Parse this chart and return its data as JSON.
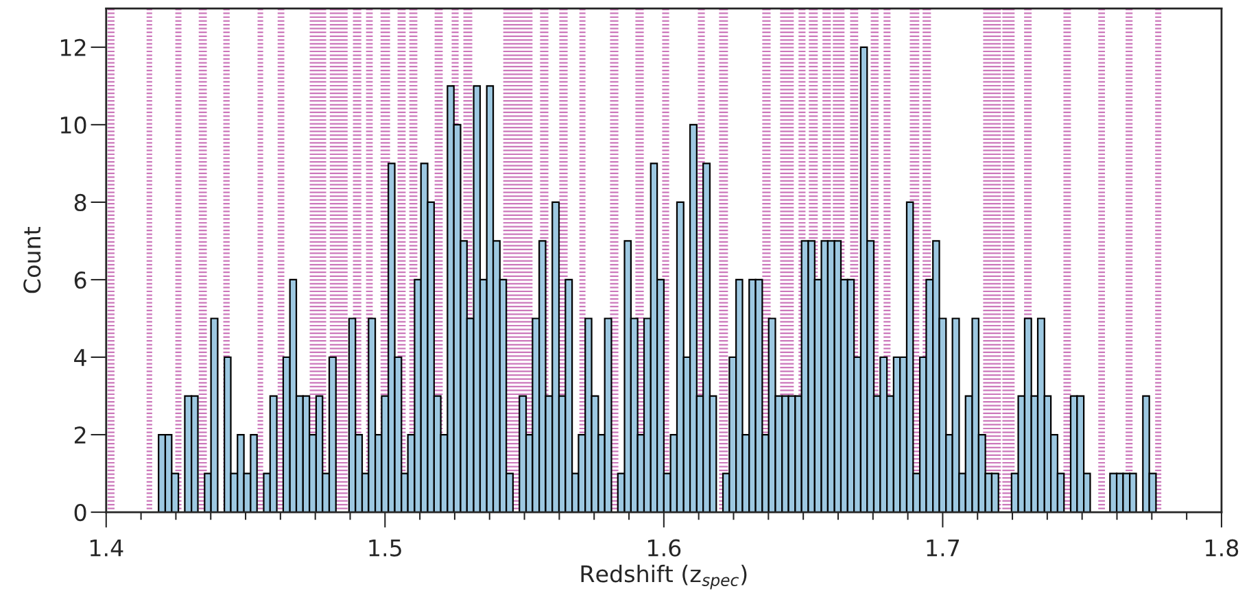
{
  "chart_data": {
    "type": "histogram",
    "xlabel": "Redshift (z$_{spec}$)",
    "ylabel": "Count",
    "color": "#9dc8e1",
    "bins": [
      1.4188,
      1.4212,
      1.4235,
      1.4259,
      1.4282,
      1.4306,
      1.4329,
      1.4353,
      1.4376,
      1.44,
      1.4424,
      1.4447,
      1.4471,
      1.4494,
      1.4518,
      1.4541,
      1.4565,
      1.4588,
      1.4612,
      1.4635,
      1.4659,
      1.4682,
      1.4706,
      1.4729,
      1.4753,
      1.4776,
      1.48,
      1.4824,
      1.4847,
      1.4871,
      1.4894,
      1.4918,
      1.4941,
      1.4965,
      1.4988,
      1.5012,
      1.5035,
      1.5059,
      1.5082,
      1.5106,
      1.5129,
      1.5153,
      1.5176,
      1.52,
      1.5224,
      1.5247,
      1.5271,
      1.5294,
      1.5318,
      1.5341,
      1.5365,
      1.5388,
      1.5412,
      1.5435,
      1.5459,
      1.5482,
      1.5506,
      1.5529,
      1.5553,
      1.5576,
      1.56,
      1.5624,
      1.5647,
      1.5671,
      1.5694,
      1.5718,
      1.5741,
      1.5765,
      1.5788,
      1.5812,
      1.5835,
      1.5859,
      1.5882,
      1.5906,
      1.5929,
      1.5953,
      1.5976,
      1.6,
      1.6024,
      1.6047,
      1.6071,
      1.6094,
      1.6118,
      1.6141,
      1.6165,
      1.6188,
      1.6212,
      1.6235,
      1.6259,
      1.6282,
      1.6306,
      1.6329,
      1.6353,
      1.6376,
      1.64,
      1.6424,
      1.6447,
      1.6471,
      1.6494,
      1.6518,
      1.6541,
      1.6565,
      1.6588,
      1.6612,
      1.6635,
      1.6659,
      1.6682,
      1.6706,
      1.6729,
      1.6753,
      1.6776,
      1.68,
      1.6824,
      1.6847,
      1.6871,
      1.6894,
      1.6918,
      1.6941,
      1.6965,
      1.6988,
      1.7012,
      1.7035,
      1.7059,
      1.7082,
      1.7106,
      1.7129,
      1.7153,
      1.7176,
      1.72,
      1.7224,
      1.7247,
      1.7271,
      1.7294,
      1.7318,
      1.7341,
      1.7365,
      1.7388,
      1.7412,
      1.7435,
      1.7459,
      1.7482,
      1.7506,
      1.7529,
      1.7553,
      1.7576,
      1.76,
      1.7624,
      1.7647,
      1.7671,
      1.7694,
      1.7718,
      1.7741,
      1.7765
    ],
    "values": [
      2,
      2,
      1,
      0,
      3,
      3,
      0,
      1,
      5,
      0,
      4,
      1,
      2,
      1,
      2,
      0,
      1,
      3,
      0,
      4,
      6,
      3,
      3,
      2,
      3,
      1,
      4,
      0,
      0,
      5,
      2,
      1,
      5,
      2,
      3,
      9,
      4,
      1,
      2,
      6,
      9,
      8,
      3,
      2,
      11,
      10,
      7,
      5,
      11,
      6,
      11,
      7,
      6,
      1,
      0,
      3,
      2,
      5,
      7,
      3,
      8,
      3,
      6,
      1,
      2,
      5,
      3,
      2,
      5,
      0,
      1,
      7,
      5,
      2,
      5,
      9,
      6,
      1,
      2,
      8,
      4,
      10,
      3,
      9,
      3,
      0,
      1,
      4,
      6,
      2,
      6,
      6,
      2,
      5,
      3,
      3,
      3,
      3,
      7,
      7,
      6,
      7,
      7,
      7,
      6,
      6,
      4,
      12,
      7,
      3,
      4,
      3,
      4,
      4,
      8,
      1,
      4,
      6,
      7,
      5,
      2,
      5,
      1,
      3,
      5,
      2,
      1,
      1,
      0,
      0,
      1,
      3,
      5,
      3,
      5,
      3,
      2,
      1,
      0,
      3,
      3,
      1,
      0,
      0,
      0,
      1,
      1,
      1,
      1,
      0,
      3,
      1
    ],
    "xlim": [
      1.4,
      1.8
    ],
    "xticks": [
      1.4,
      1.5,
      1.6,
      1.7,
      1.8
    ],
    "ylim": [
      0,
      13
    ],
    "yticks": [
      0,
      2,
      4,
      6,
      8,
      10,
      12
    ],
    "bands": [
      {
        "axis": "x",
        "from": 1.4005,
        "to": 1.403,
        "color": "#cc77bb"
      },
      {
        "axis": "x",
        "from": 1.4145,
        "to": 1.4165,
        "color": "#cc77bb"
      },
      {
        "axis": "x",
        "from": 1.4248,
        "to": 1.427,
        "color": "#cc77bb"
      },
      {
        "axis": "x",
        "from": 1.4332,
        "to": 1.4361,
        "color": "#cc77bb"
      },
      {
        "axis": "x",
        "from": 1.442,
        "to": 1.4443,
        "color": "#cc77bb"
      },
      {
        "axis": "x",
        "from": 1.4543,
        "to": 1.4563,
        "color": "#cc77bb"
      },
      {
        "axis": "x",
        "from": 1.4615,
        "to": 1.4639,
        "color": "#cc77bb"
      },
      {
        "axis": "x",
        "from": 1.473,
        "to": 1.4789,
        "color": "#cc77bb"
      },
      {
        "axis": "x",
        "from": 1.4802,
        "to": 1.4866,
        "color": "#cc77bb"
      },
      {
        "axis": "x",
        "from": 1.4885,
        "to": 1.4915,
        "color": "#cc77bb"
      },
      {
        "axis": "x",
        "from": 1.4932,
        "to": 1.4956,
        "color": "#cc77bb"
      },
      {
        "axis": "x",
        "from": 1.4984,
        "to": 1.5018,
        "color": "#cc77bb"
      },
      {
        "axis": "x",
        "from": 1.5045,
        "to": 1.5074,
        "color": "#cc77bb"
      },
      {
        "axis": "x",
        "from": 1.5087,
        "to": 1.5116,
        "color": "#cc77bb"
      },
      {
        "axis": "x",
        "from": 1.5178,
        "to": 1.5207,
        "color": "#cc77bb"
      },
      {
        "axis": "x",
        "from": 1.5239,
        "to": 1.5264,
        "color": "#cc77bb"
      },
      {
        "axis": "x",
        "from": 1.5281,
        "to": 1.5313,
        "color": "#cc77bb"
      },
      {
        "axis": "x",
        "from": 1.5424,
        "to": 1.5529,
        "color": "#cc77bb"
      },
      {
        "axis": "x",
        "from": 1.5556,
        "to": 1.5586,
        "color": "#cc77bb"
      },
      {
        "axis": "x",
        "from": 1.5625,
        "to": 1.5655,
        "color": "#cc77bb"
      },
      {
        "axis": "x",
        "from": 1.5697,
        "to": 1.5719,
        "color": "#cc77bb"
      },
      {
        "axis": "x",
        "from": 1.5807,
        "to": 1.5837,
        "color": "#cc77bb"
      },
      {
        "axis": "x",
        "from": 1.5898,
        "to": 1.5928,
        "color": "#cc77bb"
      },
      {
        "axis": "x",
        "from": 1.5994,
        "to": 1.6019,
        "color": "#cc77bb"
      },
      {
        "axis": "x",
        "from": 1.6122,
        "to": 1.6147,
        "color": "#cc77bb"
      },
      {
        "axis": "x",
        "from": 1.6198,
        "to": 1.623,
        "color": "#cc77bb"
      },
      {
        "axis": "x",
        "from": 1.6353,
        "to": 1.6383,
        "color": "#cc77bb"
      },
      {
        "axis": "x",
        "from": 1.6417,
        "to": 1.6466,
        "color": "#cc77bb"
      },
      {
        "axis": "x",
        "from": 1.6483,
        "to": 1.6508,
        "color": "#cc77bb"
      },
      {
        "axis": "x",
        "from": 1.652,
        "to": 1.6552,
        "color": "#cc77bb"
      },
      {
        "axis": "x",
        "from": 1.6569,
        "to": 1.6599,
        "color": "#cc77bb"
      },
      {
        "axis": "x",
        "from": 1.6606,
        "to": 1.6648,
        "color": "#cc77bb"
      },
      {
        "axis": "x",
        "from": 1.6668,
        "to": 1.6697,
        "color": "#cc77bb"
      },
      {
        "axis": "x",
        "from": 1.6742,
        "to": 1.677,
        "color": "#cc77bb"
      },
      {
        "axis": "x",
        "from": 1.6788,
        "to": 1.6813,
        "color": "#cc77bb"
      },
      {
        "axis": "x",
        "from": 1.6882,
        "to": 1.6916,
        "color": "#cc77bb"
      },
      {
        "axis": "x",
        "from": 1.6928,
        "to": 1.6958,
        "color": "#cc77bb"
      },
      {
        "axis": "x",
        "from": 1.7145,
        "to": 1.7209,
        "color": "#cc77bb"
      },
      {
        "axis": "x",
        "from": 1.7214,
        "to": 1.7258,
        "color": "#cc77bb"
      },
      {
        "axis": "x",
        "from": 1.7292,
        "to": 1.7319,
        "color": "#cc77bb"
      },
      {
        "axis": "x",
        "from": 1.7433,
        "to": 1.746,
        "color": "#cc77bb"
      },
      {
        "axis": "x",
        "from": 1.7558,
        "to": 1.7582,
        "color": "#cc77bb"
      },
      {
        "axis": "x",
        "from": 1.7656,
        "to": 1.7681,
        "color": "#cc77bb"
      },
      {
        "axis": "x",
        "from": 1.7762,
        "to": 1.7784,
        "color": "#cc77bb"
      }
    ]
  }
}
